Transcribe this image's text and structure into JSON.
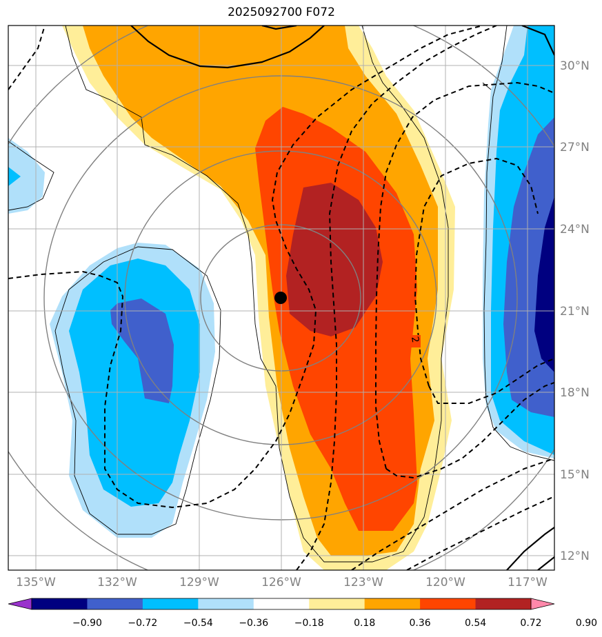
{
  "title": "2025092700 F072",
  "colors": {
    "orange_light": "#ffee99",
    "orange": "#ffa500",
    "orange_red": "#ff4500",
    "firebrick": "#b22222",
    "pink": "#ff88aa",
    "lightblue": "#b0e0fa",
    "deepskyblue": "#00bfff",
    "royalblue": "#4060cc",
    "navy": "#000080",
    "purple": "#9932cc",
    "grid": "#b0b0b0",
    "circles": "#808080"
  },
  "map": {
    "lon_range": [
      -136,
      -116
    ],
    "lat_range": [
      11.6,
      31.8
    ],
    "lat_ticks": [
      "30°N",
      "27°N",
      "24°N",
      "21°N",
      "18°N",
      "15°N",
      "12°N"
    ],
    "lon_ticks": [
      "135°W",
      "132°W",
      "129°W",
      "126°W",
      "123°W",
      "120°W",
      "117°W"
    ],
    "contour_label": "2",
    "storm_center": {
      "lon": -125.9,
      "lat": 21.5
    }
  },
  "colorbar": {
    "levels": [
      "−0.90",
      "−0.72",
      "−0.54",
      "−0.36",
      "−0.18",
      "0.18",
      "0.36",
      "0.54",
      "0.72",
      "0.90"
    ],
    "colors": [
      "#000080",
      "#4060cc",
      "#00bfff",
      "#b0e0fa",
      "#ffffff",
      "#ffee99",
      "#ffa500",
      "#ff4500",
      "#b22222"
    ],
    "under_color": "#9932cc",
    "over_color": "#ff88aa"
  }
}
